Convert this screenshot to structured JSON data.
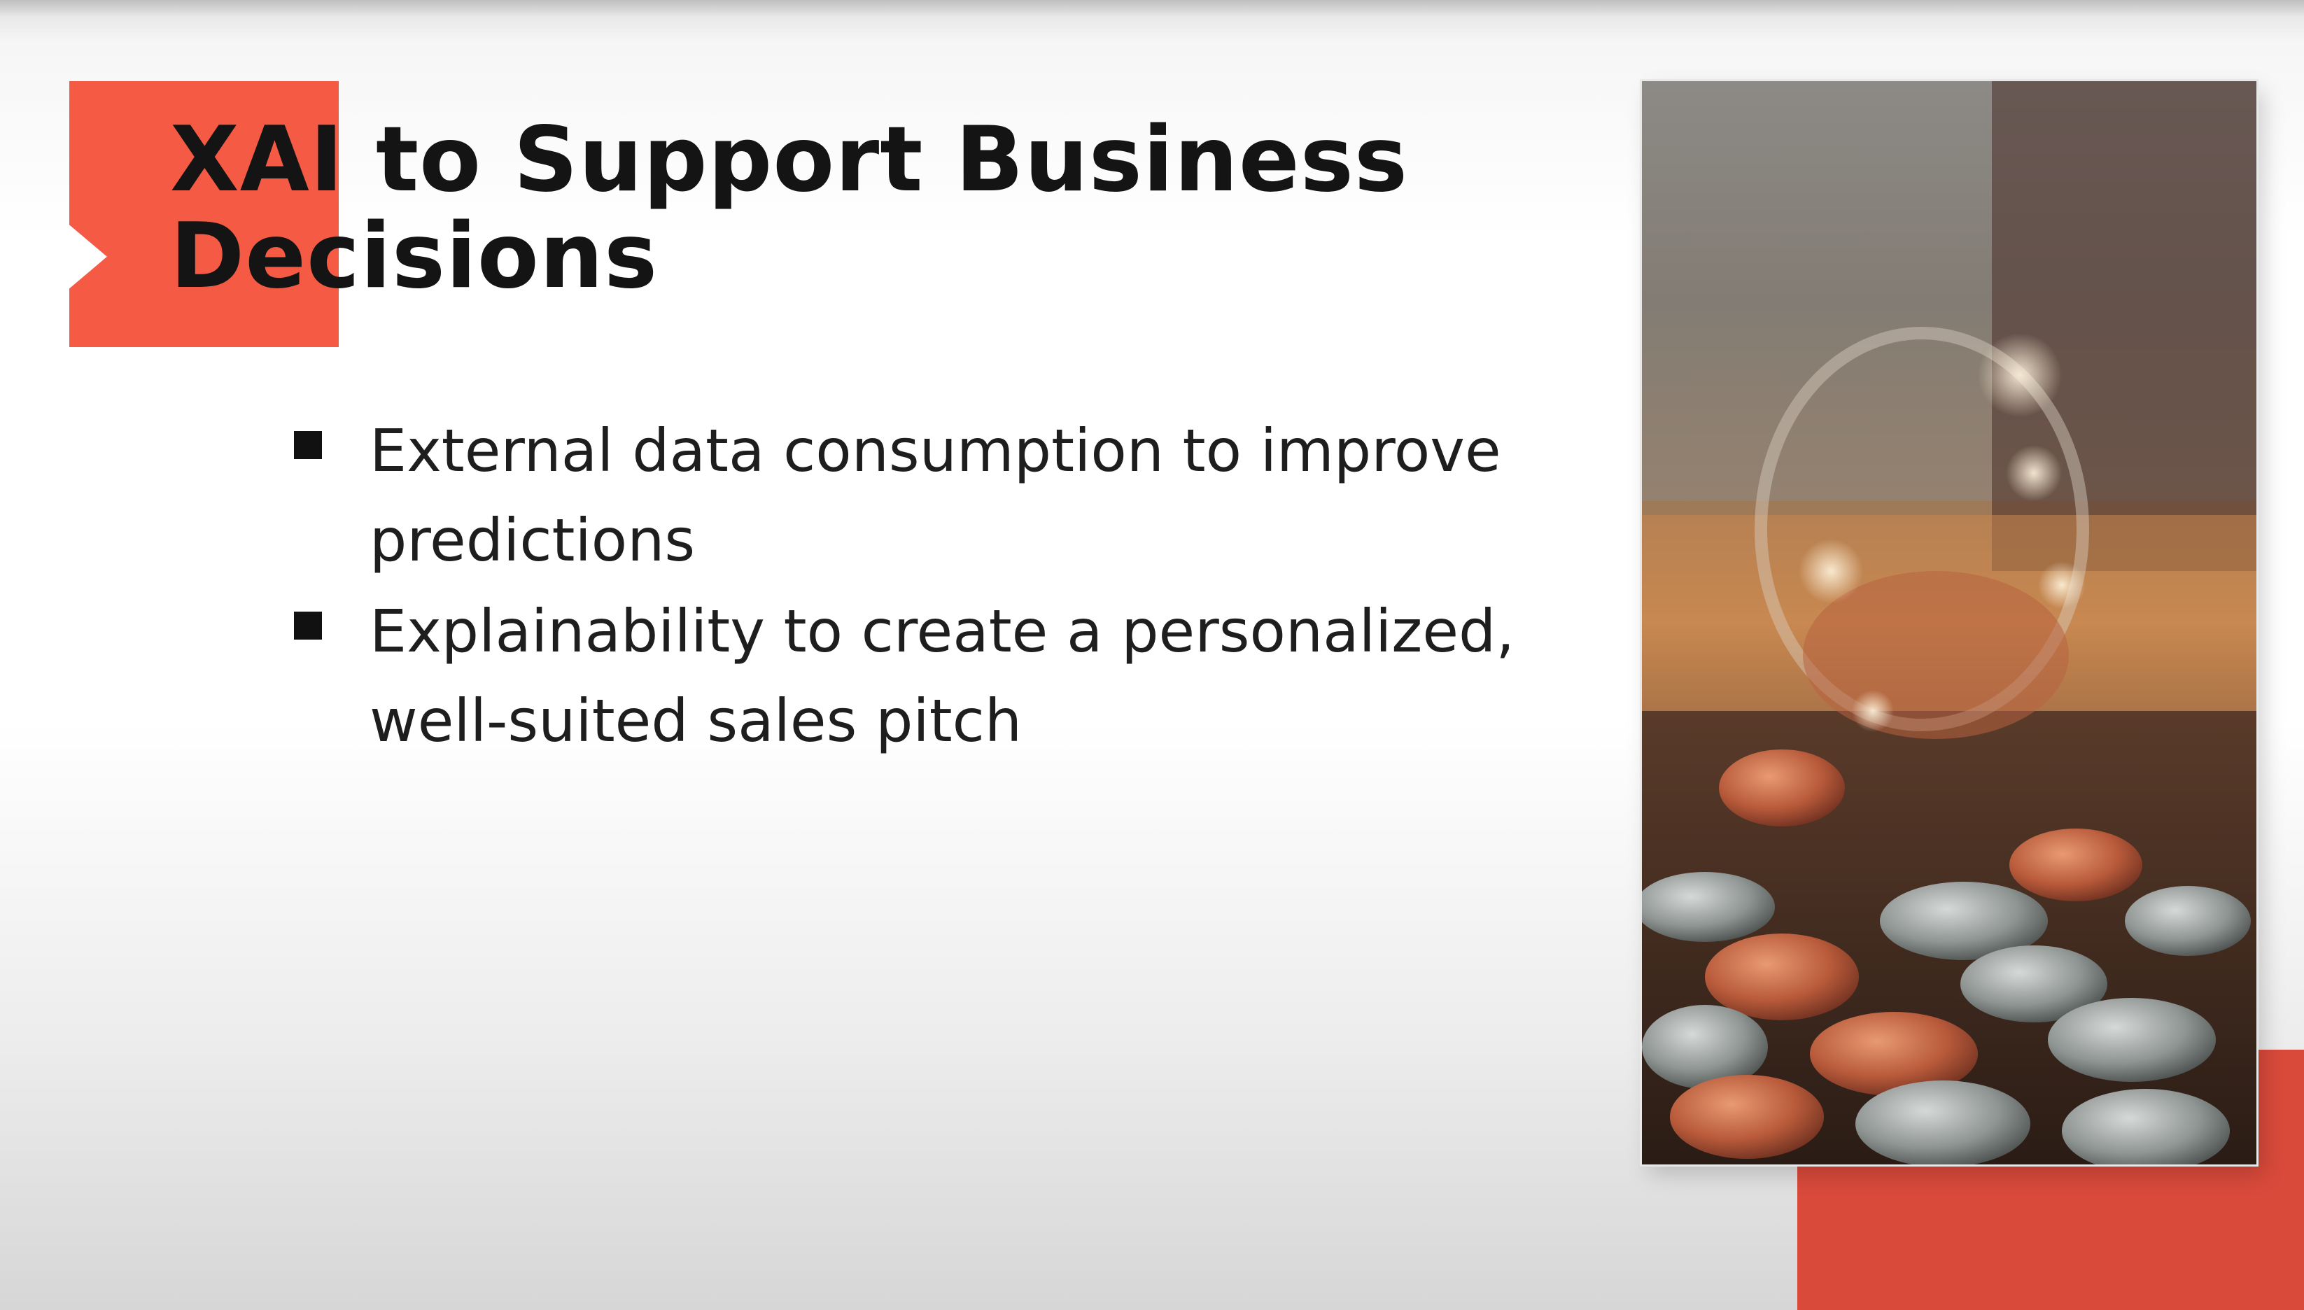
{
  "slide": {
    "title": "XAI to Support Business Decisions",
    "bullets": [
      "External data consumption to improve predictions",
      "Explainability to create a personalized, well-suited sales pitch"
    ],
    "colors": {
      "accent": "#f55a44",
      "accent_dark": "#d94a3b",
      "text": "#1e1e1e"
    }
  }
}
